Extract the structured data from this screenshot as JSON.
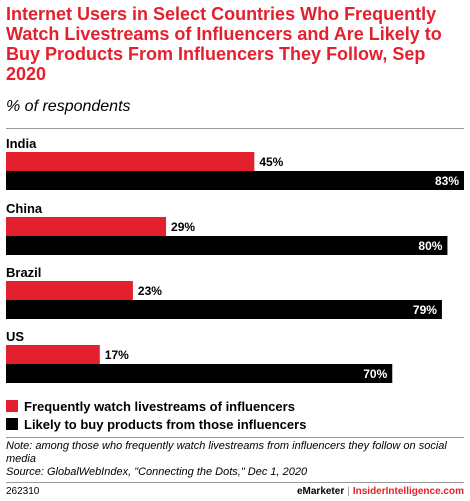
{
  "title": "Internet Users in Select Countries Who Frequently Watch Livestreams of Influencers and Are Likely to Buy Products From Influencers They Follow, Sep 2020",
  "subtitle": "% of respondents",
  "chart_data": {
    "type": "bar",
    "orientation": "horizontal",
    "categories": [
      "India",
      "China",
      "Brazil",
      "US"
    ],
    "series": [
      {
        "name": "Frequently watch livestreams of influencers",
        "values": [
          45,
          29,
          23,
          17
        ],
        "color": "#e4202e"
      },
      {
        "name": "Likely to buy products from those influencers",
        "values": [
          83,
          80,
          79,
          70
        ],
        "color": "#000000"
      }
    ],
    "value_suffix": "%",
    "xlim": [
      0,
      83
    ],
    "legend_position": "bottom-left",
    "grid": false
  },
  "note": "Note: among those who frequently watch livestreams from influencers they follow on social media",
  "source": "Source: GlobalWebIndex, \"Connecting the Dots,\" Dec 1, 2020",
  "footer": {
    "id": "262310",
    "brand_left": "eMarketer",
    "brand_sep": "|",
    "brand_right": "InsiderIntelligence.com"
  },
  "colors": {
    "accent": "#e4202e",
    "secondary": "#000000"
  }
}
